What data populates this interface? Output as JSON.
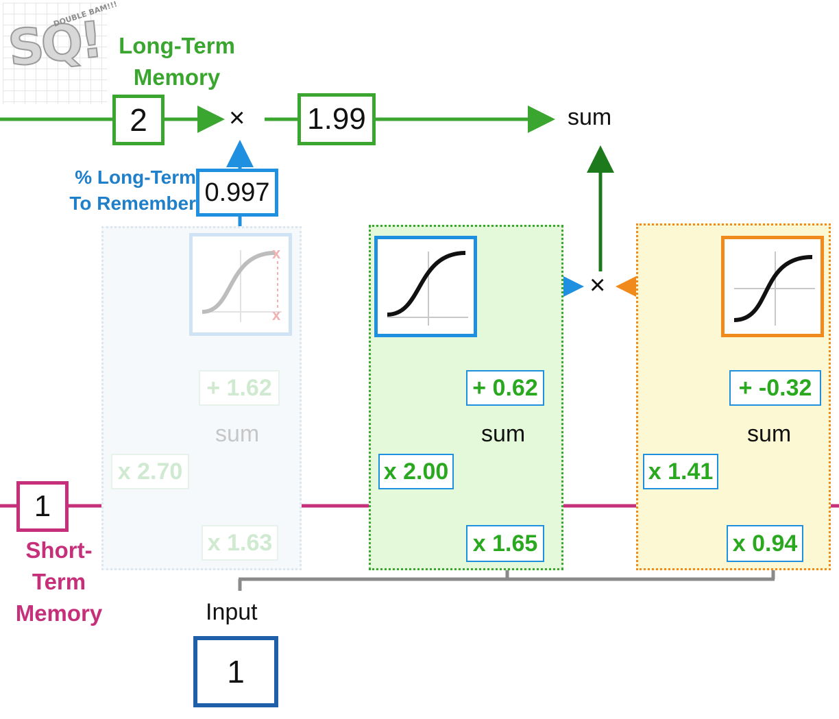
{
  "logo": {
    "text": "SQ!",
    "subtext": "DOUBLE BAM!!!"
  },
  "labels": {
    "long_term_memory": [
      "Long-Term",
      "Memory"
    ],
    "short_term_memory": [
      "Short-",
      "Term",
      "Memory"
    ],
    "pct_long_term": [
      "% Long-Term",
      "To Remember"
    ],
    "input": "Input"
  },
  "values": {
    "long_term": "2",
    "long_term_after": "1.99",
    "pct_remember": "0.997",
    "short_term": "1",
    "input": "1"
  },
  "operators": {
    "multiply_top": "×",
    "sum_top": "sum",
    "multiply_mid": "×"
  },
  "units": [
    {
      "id": "forget",
      "state": "faded",
      "weight_short": "x 2.70",
      "weight_input": "x 1.63",
      "bias": "+ 1.62",
      "sum": "sum",
      "activation": "sigmoid"
    },
    {
      "id": "input-percent",
      "state": "active",
      "weight_short": "x 2.00",
      "weight_input": "x 1.65",
      "bias": "+ 0.62",
      "sum": "sum",
      "activation": "sigmoid"
    },
    {
      "id": "input-potential",
      "state": "active",
      "weight_short": "x 1.41",
      "weight_input": "x 0.94",
      "bias": "+ -0.32",
      "sum": "sum",
      "activation": "sigmoid"
    }
  ],
  "colors": {
    "long_term": "#3aa62f",
    "short_term": "#c6307a",
    "blue": "#1f8fe0",
    "orange": "#f08a1c",
    "gray": "#8a8a8a",
    "value_green": "#2aa81f",
    "dark_green": "#1c7a1c",
    "input_box": "#1f5ea8"
  }
}
